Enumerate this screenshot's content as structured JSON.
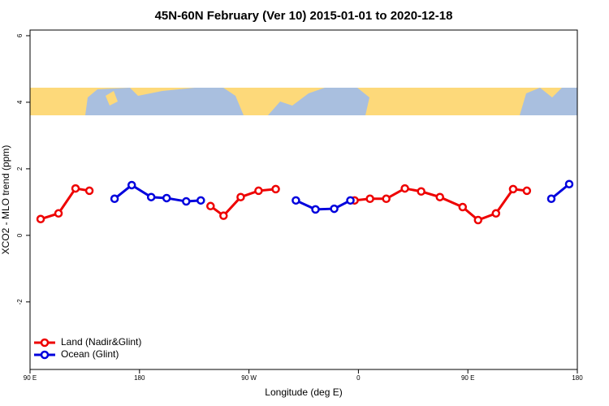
{
  "chart_data": {
    "type": "line",
    "title": "45N-60N February (Ver 10)   2015-01-01 to 2020-12-18",
    "xlabel": "Longitude (deg E)",
    "ylabel": "XCO2 - MLO trend (ppm)",
    "xlim": [
      90,
      540
    ],
    "ylim": [
      -4.03,
      6.17
    ],
    "xticks": [
      {
        "value": 90,
        "label": "90 E"
      },
      180,
      {
        "value": 270,
        "label": "90 W"
      },
      {
        "value": 360,
        "label": "0"
      },
      {
        "value": 450,
        "label": "90 E"
      },
      {
        "value": 540,
        "label": "180"
      }
    ],
    "yticks": [
      -2,
      0,
      2,
      4,
      6
    ],
    "legend": "bottom-left",
    "series": [
      {
        "name": "Land (Nadir&Glint)",
        "color": "#ee0000",
        "x": [
          98.7,
          113.4,
          127.4,
          138.8,
          null,
          238.4,
          249.1,
          263.2,
          277.9,
          292.0,
          null,
          356.8,
          369.5,
          382.9,
          398.2,
          411.6,
          427.0,
          445.7,
          458.4,
          473.1,
          487.2,
          498.5
        ],
        "values": [
          0.49,
          0.66,
          1.41,
          1.34,
          null,
          0.88,
          0.59,
          1.15,
          1.34,
          1.39,
          null,
          1.05,
          1.1,
          1.1,
          1.41,
          1.32,
          1.15,
          0.85,
          0.46,
          0.66,
          1.39,
          1.34
        ]
      },
      {
        "name": "Ocean (Glint)",
        "color": "#0000dd",
        "x": [
          159.5,
          173.6,
          189.6,
          202.3,
          218.4,
          230.4,
          null,
          308.6,
          324.7,
          340.1,
          353.4,
          null,
          518.6,
          533.3
        ],
        "values": [
          1.1,
          1.51,
          1.15,
          1.12,
          1.02,
          1.05,
          null,
          1.05,
          0.78,
          0.8,
          1.05,
          null,
          1.1,
          1.54
        ]
      }
    ]
  }
}
